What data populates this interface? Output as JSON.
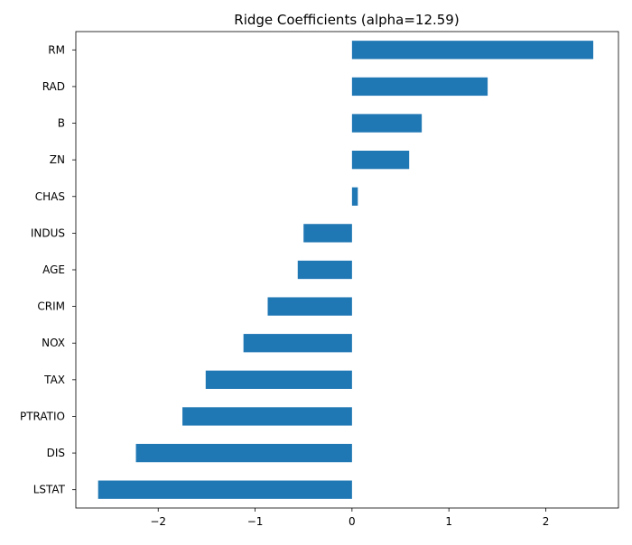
{
  "chart_data": {
    "type": "bar",
    "orientation": "horizontal",
    "title": "Ridge Coefficients (alpha=12.59)",
    "xlabel": "",
    "ylabel": "",
    "categories": [
      "RM",
      "RAD",
      "B",
      "ZN",
      "CHAS",
      "INDUS",
      "AGE",
      "CRIM",
      "NOX",
      "TAX",
      "PTRATIO",
      "DIS",
      "LSTAT"
    ],
    "values": [
      2.49,
      1.4,
      0.72,
      0.59,
      0.06,
      -0.5,
      -0.56,
      -0.87,
      -1.12,
      -1.51,
      -1.75,
      -2.23,
      -2.62
    ],
    "xlim": [
      -2.85,
      2.75
    ],
    "xticks": [
      -2,
      -1,
      0,
      1,
      2
    ],
    "xtick_labels": [
      "−2",
      "−1",
      "0",
      "1",
      "2"
    ],
    "grid": false,
    "legend": "none",
    "bar_color": "#1f77b4"
  }
}
